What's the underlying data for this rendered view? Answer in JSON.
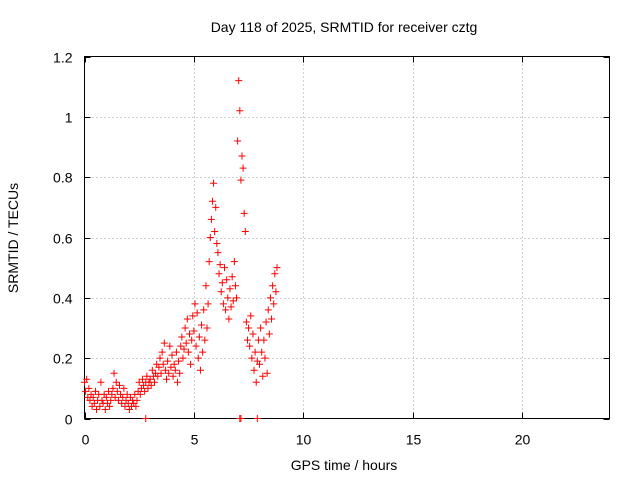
{
  "chart_data": {
    "type": "scatter",
    "title": "Day 118 of 2025, SRMTID for receiver cztg",
    "xlabel": "GPS time / hours",
    "ylabel": "SRMTID / TECUs",
    "xlim": [
      0,
      24
    ],
    "ylim": [
      0,
      1.2
    ],
    "xticks": [
      0,
      5,
      10,
      15,
      20
    ],
    "xtick_labels": [
      "0",
      "5",
      "10",
      "15",
      "20"
    ],
    "yticks": [
      0,
      0.2,
      0.4,
      0.6,
      0.8,
      1.0,
      1.2
    ],
    "ytick_labels": [
      "0",
      "0.2",
      "0.4",
      "0.6",
      "0.8",
      "1",
      "1.2"
    ],
    "grid": true,
    "legend": "none",
    "marker": "+",
    "color": "#ff0000",
    "series": [
      {
        "name": "SRMTID",
        "points": [
          [
            0.0,
            0.12
          ],
          [
            0.05,
            0.09
          ],
          [
            0.1,
            0.13
          ],
          [
            0.15,
            0.07
          ],
          [
            0.2,
            0.1
          ],
          [
            0.25,
            0.06
          ],
          [
            0.3,
            0.08
          ],
          [
            0.35,
            0.04
          ],
          [
            0.4,
            0.07
          ],
          [
            0.45,
            0.05
          ],
          [
            0.5,
            0.09
          ],
          [
            0.55,
            0.03
          ],
          [
            0.6,
            0.06
          ],
          [
            0.65,
            0.08
          ],
          [
            0.7,
            0.04
          ],
          [
            0.75,
            0.12
          ],
          [
            0.8,
            0.06
          ],
          [
            0.85,
            0.05
          ],
          [
            0.9,
            0.08
          ],
          [
            0.95,
            0.03
          ],
          [
            1.0,
            0.07
          ],
          [
            1.05,
            0.05
          ],
          [
            1.1,
            0.09
          ],
          [
            1.15,
            0.04
          ],
          [
            1.2,
            0.06
          ],
          [
            1.25,
            0.08
          ],
          [
            1.3,
            0.1
          ],
          [
            1.35,
            0.15
          ],
          [
            1.4,
            0.07
          ],
          [
            1.45,
            0.12
          ],
          [
            1.5,
            0.09
          ],
          [
            1.55,
            0.06
          ],
          [
            1.6,
            0.11
          ],
          [
            1.65,
            0.08
          ],
          [
            1.7,
            0.05
          ],
          [
            1.75,
            0.07
          ],
          [
            1.8,
            0.1
          ],
          [
            1.85,
            0.04
          ],
          [
            1.9,
            0.06
          ],
          [
            1.95,
            0.08
          ],
          [
            2.0,
            0.05
          ],
          [
            2.05,
            0.03
          ],
          [
            2.1,
            0.07
          ],
          [
            2.15,
            0.04
          ],
          [
            2.2,
            0.06
          ],
          [
            2.25,
            0.05
          ],
          [
            2.3,
            0.08
          ],
          [
            2.35,
            0.04
          ],
          [
            2.4,
            0.06
          ],
          [
            2.45,
            0.09
          ],
          [
            2.5,
            0.12
          ],
          [
            2.55,
            0.08
          ],
          [
            2.6,
            0.1
          ],
          [
            2.65,
            0.13
          ],
          [
            2.7,
            0.11
          ],
          [
            2.75,
            0.09
          ],
          [
            2.8,
            0.12
          ],
          [
            2.85,
            0.14
          ],
          [
            2.9,
            0.1
          ],
          [
            2.95,
            0.12
          ],
          [
            3.0,
            0.13
          ],
          [
            3.05,
            0.11
          ],
          [
            3.1,
            0.16
          ],
          [
            3.15,
            0.14
          ],
          [
            3.2,
            0.12
          ],
          [
            3.25,
            0.15
          ],
          [
            3.3,
            0.18
          ],
          [
            3.35,
            0.14
          ],
          [
            3.4,
            0.17
          ],
          [
            3.45,
            0.2
          ],
          [
            3.5,
            0.15
          ],
          [
            3.55,
            0.22
          ],
          [
            3.6,
            0.18
          ],
          [
            3.65,
            0.25
          ],
          [
            3.7,
            0.16
          ],
          [
            3.75,
            0.13
          ],
          [
            3.8,
            0.19
          ],
          [
            3.85,
            0.15
          ],
          [
            3.9,
            0.24
          ],
          [
            3.95,
            0.17
          ],
          [
            4.0,
            0.21
          ],
          [
            4.05,
            0.14
          ],
          [
            4.1,
            0.18
          ],
          [
            4.15,
            0.16
          ],
          [
            4.2,
            0.22
          ],
          [
            4.25,
            0.12
          ],
          [
            4.3,
            0.19
          ],
          [
            4.35,
            0.15
          ],
          [
            4.4,
            0.24
          ],
          [
            4.45,
            0.27
          ],
          [
            4.5,
            0.2
          ],
          [
            4.55,
            0.23
          ],
          [
            4.6,
            0.3
          ],
          [
            4.65,
            0.25
          ],
          [
            4.7,
            0.33
          ],
          [
            4.75,
            0.22
          ],
          [
            4.8,
            0.28
          ],
          [
            4.85,
            0.18
          ],
          [
            4.9,
            0.26
          ],
          [
            4.95,
            0.34
          ],
          [
            5.0,
            0.29
          ],
          [
            5.05,
            0.38
          ],
          [
            5.1,
            0.24
          ],
          [
            5.15,
            0.35
          ],
          [
            5.2,
            0.2
          ],
          [
            5.25,
            0.27
          ],
          [
            5.3,
            0.16
          ],
          [
            5.35,
            0.31
          ],
          [
            5.4,
            0.22
          ],
          [
            5.45,
            0.36
          ],
          [
            5.5,
            0.26
          ],
          [
            5.55,
            0.44
          ],
          [
            5.6,
            0.3
          ],
          [
            5.65,
            0.38
          ],
          [
            5.7,
            0.52
          ],
          [
            5.75,
            0.6
          ],
          [
            5.8,
            0.66
          ],
          [
            5.85,
            0.72
          ],
          [
            5.9,
            0.78
          ],
          [
            5.95,
            0.62
          ],
          [
            6.0,
            0.7
          ],
          [
            6.05,
            0.58
          ],
          [
            6.1,
            0.55
          ],
          [
            6.15,
            0.48
          ],
          [
            6.2,
            0.51
          ],
          [
            6.25,
            0.42
          ],
          [
            6.3,
            0.45
          ],
          [
            6.35,
            0.38
          ],
          [
            6.4,
            0.5
          ],
          [
            6.45,
            0.36
          ],
          [
            6.5,
            0.46
          ],
          [
            6.55,
            0.4
          ],
          [
            6.6,
            0.33
          ],
          [
            6.65,
            0.43
          ],
          [
            6.7,
            0.37
          ],
          [
            6.75,
            0.47
          ],
          [
            6.8,
            0.39
          ],
          [
            6.85,
            0.52
          ],
          [
            6.9,
            0.44
          ],
          [
            6.95,
            0.4
          ],
          [
            7.0,
            0.92
          ],
          [
            7.05,
            1.12
          ],
          [
            7.1,
            1.02
          ],
          [
            7.15,
            0.79
          ],
          [
            7.2,
            0.87
          ],
          [
            7.25,
            0.83
          ],
          [
            7.3,
            0.68
          ],
          [
            7.35,
            0.62
          ],
          [
            7.4,
            0.32
          ],
          [
            7.45,
            0.26
          ],
          [
            7.5,
            0.3
          ],
          [
            7.55,
            0.24
          ],
          [
            7.6,
            0.34
          ],
          [
            7.65,
            0.2
          ],
          [
            7.7,
            0.28
          ],
          [
            7.75,
            0.16
          ],
          [
            7.8,
            0.22
          ],
          [
            7.85,
            0.12
          ],
          [
            7.9,
            0.19
          ],
          [
            7.95,
            0.26
          ],
          [
            8.0,
            0.18
          ],
          [
            8.05,
            0.3
          ],
          [
            8.1,
            0.22
          ],
          [
            8.15,
            0.14
          ],
          [
            8.2,
            0.26
          ],
          [
            8.25,
            0.2
          ],
          [
            8.3,
            0.32
          ],
          [
            8.35,
            0.15
          ],
          [
            8.4,
            0.36
          ],
          [
            8.45,
            0.28
          ],
          [
            8.5,
            0.4
          ],
          [
            8.55,
            0.33
          ],
          [
            8.6,
            0.44
          ],
          [
            8.65,
            0.38
          ],
          [
            8.7,
            0.48
          ],
          [
            8.75,
            0.42
          ],
          [
            8.8,
            0.5
          ],
          [
            2.8,
            0.0
          ],
          [
            7.1,
            0.0
          ],
          [
            7.15,
            0.0
          ],
          [
            7.9,
            0.0
          ]
        ]
      }
    ]
  }
}
